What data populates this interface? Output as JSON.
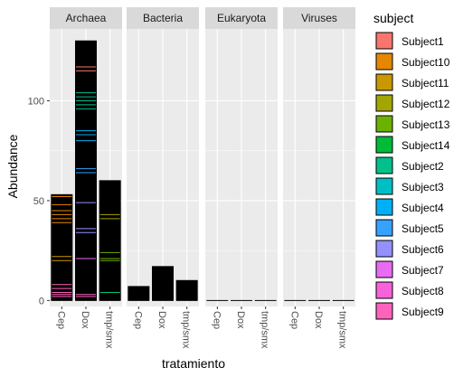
{
  "chart_data": {
    "type": "bar",
    "stacked": true,
    "facets": [
      "Archaea",
      "Bacteria",
      "Eukaryota",
      "Viruses"
    ],
    "categories": [
      "Cep",
      "Dox",
      "tmp/smx"
    ],
    "totals": {
      "Archaea": [
        53,
        130,
        60
      ],
      "Bacteria": [
        7,
        17,
        10
      ],
      "Eukaryota": [
        0,
        0,
        0
      ],
      "Viruses": [
        0,
        0,
        0
      ]
    },
    "archaea_segments": {
      "Cep": [
        {
          "subject": "Subject10",
          "values": [
            52,
            48,
            45,
            43,
            41,
            39
          ]
        },
        {
          "subject": "Subject11",
          "values": [
            22,
            20
          ]
        },
        {
          "subject": "Subject9",
          "values": [
            8,
            6,
            4,
            3,
            2
          ]
        }
      ],
      "Dox": [
        {
          "subject": "Subject1",
          "values": [
            117,
            115
          ]
        },
        {
          "subject": "Subject2",
          "values": [
            104,
            102,
            100,
            98,
            96
          ]
        },
        {
          "subject": "Subject4",
          "values": [
            85,
            83,
            80
          ]
        },
        {
          "subject": "Subject5",
          "values": [
            66,
            64
          ]
        },
        {
          "subject": "Subject6",
          "values": [
            49,
            36,
            34
          ]
        },
        {
          "subject": "Subject7",
          "values": [
            21
          ]
        },
        {
          "subject": "Subject9",
          "values": [
            3,
            2
          ]
        }
      ],
      "tmp/smx": [
        {
          "subject": "Subject12",
          "values": [
            43,
            41
          ]
        },
        {
          "subject": "Subject13",
          "values": [
            24,
            21,
            20
          ]
        },
        {
          "subject": "Subject2",
          "values": [
            4
          ]
        }
      ]
    },
    "xlabel": "tratamiento",
    "ylabel": "Abundance",
    "ylim": [
      -3,
      136
    ],
    "yticks": [
      0,
      50,
      100
    ],
    "grid": true,
    "legend": {
      "title": "subject",
      "placement": "right",
      "entries": [
        {
          "label": "Subject1",
          "color": "#F8766D"
        },
        {
          "label": "Subject10",
          "color": "#E58700"
        },
        {
          "label": "Subject11",
          "color": "#C99800"
        },
        {
          "label": "Subject12",
          "color": "#A3A500"
        },
        {
          "label": "Subject13",
          "color": "#6BB100"
        },
        {
          "label": "Subject14",
          "color": "#00BA38"
        },
        {
          "label": "Subject2",
          "color": "#00C08B"
        },
        {
          "label": "Subject3",
          "color": "#00BFC4"
        },
        {
          "label": "Subject4",
          "color": "#00B0F6"
        },
        {
          "label": "Subject5",
          "color": "#35A2FF"
        },
        {
          "label": "Subject6",
          "color": "#9590FF"
        },
        {
          "label": "Subject7",
          "color": "#E76BF3"
        },
        {
          "label": "Subject8",
          "color": "#FA62DB"
        },
        {
          "label": "Subject9",
          "color": "#FF62BC"
        }
      ]
    },
    "colors": {
      "panel_bg": "#EBEBEB",
      "strip_bg": "#D9D9D9",
      "grid": "#FFFFFF",
      "bar": "#000000"
    }
  }
}
